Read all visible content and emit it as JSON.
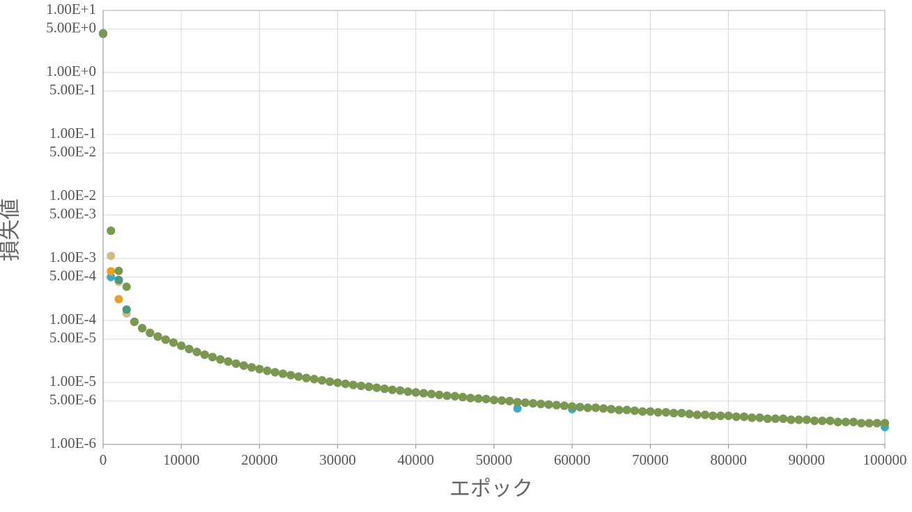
{
  "chart_data": {
    "type": "scatter",
    "x_label": "エポック",
    "y_label": "損失値",
    "log_y": true,
    "grid": true,
    "xlim": [
      0,
      100000
    ],
    "xticks": [
      0,
      10000,
      20000,
      30000,
      40000,
      50000,
      60000,
      70000,
      80000,
      90000,
      100000
    ],
    "ylim": [
      1e-06,
      10
    ],
    "yticks": [
      {
        "value": 10,
        "label": "1.00E+1"
      },
      {
        "value": 5,
        "label": "5.00E+0"
      },
      {
        "value": 1,
        "label": "1.00E+0"
      },
      {
        "value": 0.5,
        "label": "5.00E-1"
      },
      {
        "value": 0.1,
        "label": "1.00E-1"
      },
      {
        "value": 0.05,
        "label": "5.00E-2"
      },
      {
        "value": 0.01,
        "label": "1.00E-2"
      },
      {
        "value": 0.005,
        "label": "5.00E-3"
      },
      {
        "value": 0.001,
        "label": "1.00E-3"
      },
      {
        "value": 0.0005,
        "label": "5.00E-4"
      },
      {
        "value": 0.0001,
        "label": "1.00E-4"
      },
      {
        "value": 5e-05,
        "label": "5.00E-5"
      },
      {
        "value": 1e-05,
        "label": "1.00E-5"
      },
      {
        "value": 5e-06,
        "label": "5.00E-6"
      },
      {
        "value": 1e-06,
        "label": "1.00E-6"
      }
    ],
    "x": [
      0,
      1000,
      2000,
      3000,
      4000,
      5000,
      6000,
      7000,
      8000,
      9000,
      10000,
      11000,
      12000,
      13000,
      14000,
      15000,
      16000,
      17000,
      18000,
      19000,
      20000,
      21000,
      22000,
      23000,
      24000,
      25000,
      26000,
      27000,
      28000,
      29000,
      30000,
      31000,
      32000,
      33000,
      34000,
      35000,
      36000,
      37000,
      38000,
      39000,
      40000,
      41000,
      42000,
      43000,
      44000,
      45000,
      46000,
      47000,
      48000,
      49000,
      50000,
      51000,
      52000,
      53000,
      54000,
      55000,
      56000,
      57000,
      58000,
      59000,
      60000,
      61000,
      62000,
      63000,
      64000,
      65000,
      66000,
      67000,
      68000,
      69000,
      70000,
      71000,
      72000,
      73000,
      74000,
      75000,
      76000,
      77000,
      78000,
      79000,
      80000,
      81000,
      82000,
      83000,
      84000,
      85000,
      86000,
      87000,
      88000,
      89000,
      90000,
      91000,
      92000,
      93000,
      94000,
      95000,
      96000,
      97000,
      98000,
      99000,
      100000
    ],
    "series": [
      {
        "color": "#3fa9c9",
        "values": [
          4.2,
          0.0005,
          0.00045,
          0.00015,
          9.5e-05,
          7.5e-05,
          6.3e-05,
          5.5e-05,
          4.9e-05,
          4.4e-05,
          3.9e-05,
          3.46e-05,
          3.1e-05,
          2.8e-05,
          2.56e-05,
          2.35e-05,
          2.17e-05,
          2.01e-05,
          1.87e-05,
          1.75e-05,
          1.64e-05,
          1.54e-05,
          1.46e-05,
          1.38e-05,
          1.31e-05,
          1.24e-05,
          1.18e-05,
          1.13e-05,
          1.08e-05,
          1.03e-05,
          9.9e-06,
          9.5e-06,
          9.1e-06,
          8.8e-06,
          8.5e-06,
          8.2e-06,
          7.9e-06,
          7.6e-06,
          7.4e-06,
          7.1e-06,
          6.9e-06,
          6.7e-06,
          6.5e-06,
          6.3e-06,
          6.1e-06,
          6e-06,
          5.8e-06,
          5.6e-06,
          5.5e-06,
          5.4e-06,
          5.2e-06,
          5.1e-06,
          5e-06,
          3.8e-06,
          4.7e-06,
          4.6e-06,
          4.5e-06,
          4.4e-06,
          4.3e-06,
          4.2e-06,
          3.7e-06,
          4e-06,
          3.9e-06,
          3.9e-06,
          3.8e-06,
          3.7e-06,
          3.6e-06,
          3.6e-06,
          3.5e-06,
          3.4e-06,
          3.4e-06,
          3.3e-06,
          3.3e-06,
          3.2e-06,
          3.2e-06,
          3.1e-06,
          3e-06,
          3e-06,
          2.9e-06,
          2.9e-06,
          2.9e-06,
          2.8e-06,
          2.8e-06,
          2.7e-06,
          2.7e-06,
          2.6e-06,
          2.6e-06,
          2.6e-06,
          2.5e-06,
          2.5e-06,
          2.5e-06,
          2.4e-06,
          2.4e-06,
          2.4e-06,
          2.3e-06,
          2.3e-06,
          2.3e-06,
          2.2e-06,
          2.2e-06,
          2.2e-06,
          1.9e-06
        ]
      },
      {
        "color": "#e8a326",
        "values": [
          4.2,
          0.00062,
          0.00022,
          0.00013,
          9.5e-05,
          7.5e-05,
          6.3e-05,
          5.5e-05,
          4.9e-05,
          4.4e-05,
          3.9e-05,
          3.46e-05,
          3.1e-05,
          2.8e-05,
          2.56e-05,
          2.35e-05,
          2.17e-05,
          2.01e-05,
          1.87e-05,
          1.75e-05,
          1.64e-05,
          1.54e-05,
          1.46e-05,
          1.38e-05,
          1.31e-05,
          1.24e-05,
          1.18e-05,
          1.13e-05,
          1.08e-05,
          1.03e-05,
          9.9e-06,
          9.5e-06,
          9.1e-06,
          8.8e-06,
          8.5e-06,
          8.2e-06,
          7.9e-06,
          7.6e-06,
          7.4e-06,
          7.1e-06,
          6.9e-06,
          6.7e-06,
          6.5e-06,
          6.3e-06,
          6.1e-06,
          6e-06,
          5.8e-06,
          5.6e-06,
          5.5e-06,
          5.4e-06,
          5.2e-06,
          5.1e-06,
          5e-06,
          4.8e-06,
          4.7e-06,
          4.6e-06,
          4.5e-06,
          4.4e-06,
          4.3e-06,
          4.2e-06,
          4.1e-06,
          4e-06,
          3.9e-06,
          3.9e-06,
          3.8e-06,
          3.7e-06,
          3.6e-06,
          3.6e-06,
          3.5e-06,
          3.4e-06,
          3.4e-06,
          3.3e-06,
          3.3e-06,
          3.2e-06,
          3.2e-06,
          3.1e-06,
          3e-06,
          3e-06,
          2.9e-06,
          2.9e-06,
          2.9e-06,
          2.8e-06,
          2.8e-06,
          2.7e-06,
          2.7e-06,
          2.6e-06,
          2.6e-06,
          2.6e-06,
          2.5e-06,
          2.5e-06,
          2.5e-06,
          2.4e-06,
          2.4e-06,
          2.4e-06,
          2.3e-06,
          2.3e-06,
          2.3e-06,
          2.2e-06,
          2.2e-06,
          2.2e-06,
          2.2e-06
        ]
      },
      {
        "color": "#cdbb8e",
        "values": [
          4.2,
          0.0011,
          0.00042,
          0.00013,
          9.5e-05,
          7.5e-05,
          6.3e-05,
          5.5e-05,
          4.9e-05,
          4.4e-05,
          3.9e-05,
          3.46e-05,
          3.1e-05,
          2.8e-05,
          2.56e-05,
          2.35e-05,
          2.17e-05,
          2.01e-05,
          1.87e-05,
          1.75e-05,
          1.64e-05,
          1.54e-05,
          1.46e-05,
          1.38e-05,
          1.31e-05,
          1.24e-05,
          1.18e-05,
          1.13e-05,
          1.08e-05,
          1.03e-05,
          9.9e-06,
          9.5e-06,
          9.1e-06,
          8.8e-06,
          8.5e-06,
          8.2e-06,
          7.9e-06,
          7.6e-06,
          7.4e-06,
          7.1e-06,
          6.9e-06,
          6.7e-06,
          6.5e-06,
          6.3e-06,
          6.1e-06,
          6e-06,
          5.8e-06,
          5.6e-06,
          5.5e-06,
          5.4e-06,
          5.2e-06,
          5.1e-06,
          5e-06,
          4.8e-06,
          4.7e-06,
          4.6e-06,
          4.5e-06,
          4.4e-06,
          4.3e-06,
          4.2e-06,
          4.1e-06,
          4e-06,
          3.9e-06,
          3.9e-06,
          3.8e-06,
          3.7e-06,
          3.6e-06,
          3.6e-06,
          3.5e-06,
          3.4e-06,
          3.4e-06,
          3.3e-06,
          3.3e-06,
          3.2e-06,
          3.2e-06,
          3.1e-06,
          3e-06,
          3e-06,
          2.9e-06,
          2.9e-06,
          2.9e-06,
          2.8e-06,
          2.8e-06,
          2.7e-06,
          2.7e-06,
          2.6e-06,
          2.6e-06,
          2.6e-06,
          2.5e-06,
          2.5e-06,
          2.5e-06,
          2.4e-06,
          2.4e-06,
          2.4e-06,
          2.3e-06,
          2.3e-06,
          2.3e-06,
          2.2e-06,
          2.2e-06,
          2.2e-06,
          2.2e-06
        ]
      },
      {
        "color": "#4a9a7a",
        "values": [
          4.2,
          0.0028,
          0.00045,
          0.00015,
          9.5e-05,
          7.5e-05,
          6.3e-05,
          5.5e-05,
          4.9e-05,
          4.4e-05,
          3.9e-05,
          3.46e-05,
          3.1e-05,
          2.8e-05,
          2.56e-05,
          2.35e-05,
          2.17e-05,
          2.01e-05,
          1.87e-05,
          1.75e-05,
          1.64e-05,
          1.54e-05,
          1.46e-05,
          1.38e-05,
          1.31e-05,
          1.24e-05,
          1.18e-05,
          1.13e-05,
          1.08e-05,
          1.03e-05,
          9.9e-06,
          9.5e-06,
          9.1e-06,
          8.8e-06,
          8.5e-06,
          8.2e-06,
          7.9e-06,
          7.6e-06,
          7.4e-06,
          7.1e-06,
          6.9e-06,
          6.7e-06,
          6.5e-06,
          6.3e-06,
          6.1e-06,
          6e-06,
          5.8e-06,
          5.6e-06,
          5.5e-06,
          5.4e-06,
          5.2e-06,
          5.1e-06,
          5e-06,
          4.8e-06,
          4.7e-06,
          4.6e-06,
          4.5e-06,
          4.4e-06,
          4.3e-06,
          4.2e-06,
          4.1e-06,
          4e-06,
          3.9e-06,
          3.9e-06,
          3.8e-06,
          3.7e-06,
          3.6e-06,
          3.6e-06,
          3.5e-06,
          3.4e-06,
          3.4e-06,
          3.3e-06,
          3.3e-06,
          3.2e-06,
          3.2e-06,
          3.1e-06,
          3e-06,
          3e-06,
          2.9e-06,
          2.9e-06,
          2.9e-06,
          2.8e-06,
          2.8e-06,
          2.7e-06,
          2.7e-06,
          2.6e-06,
          2.6e-06,
          2.6e-06,
          2.5e-06,
          2.5e-06,
          2.5e-06,
          2.4e-06,
          2.4e-06,
          2.4e-06,
          2.3e-06,
          2.3e-06,
          2.3e-06,
          2.2e-06,
          2.2e-06,
          2.2e-06,
          2.2e-06
        ]
      },
      {
        "color": "#7a9850",
        "values": [
          4.3,
          0.0028,
          0.00063,
          0.00035,
          9.5e-05,
          7.5e-05,
          6.3e-05,
          5.5e-05,
          4.9e-05,
          4.4e-05,
          3.9e-05,
          3.46e-05,
          3.1e-05,
          2.8e-05,
          2.56e-05,
          2.35e-05,
          2.17e-05,
          2.01e-05,
          1.87e-05,
          1.75e-05,
          1.64e-05,
          1.54e-05,
          1.46e-05,
          1.38e-05,
          1.31e-05,
          1.24e-05,
          1.18e-05,
          1.13e-05,
          1.08e-05,
          1.03e-05,
          9.9e-06,
          9.5e-06,
          9.1e-06,
          8.8e-06,
          8.5e-06,
          8.2e-06,
          7.9e-06,
          7.6e-06,
          7.4e-06,
          7.1e-06,
          6.9e-06,
          6.7e-06,
          6.5e-06,
          6.3e-06,
          6.1e-06,
          6e-06,
          5.8e-06,
          5.6e-06,
          5.5e-06,
          5.4e-06,
          5.2e-06,
          5.1e-06,
          5e-06,
          4.8e-06,
          4.7e-06,
          4.6e-06,
          4.5e-06,
          4.4e-06,
          4.3e-06,
          4.2e-06,
          4.1e-06,
          4e-06,
          3.9e-06,
          3.9e-06,
          3.8e-06,
          3.7e-06,
          3.6e-06,
          3.6e-06,
          3.5e-06,
          3.4e-06,
          3.4e-06,
          3.3e-06,
          3.3e-06,
          3.2e-06,
          3.2e-06,
          3.1e-06,
          3e-06,
          3e-06,
          2.9e-06,
          2.9e-06,
          2.9e-06,
          2.8e-06,
          2.8e-06,
          2.7e-06,
          2.7e-06,
          2.6e-06,
          2.6e-06,
          2.6e-06,
          2.5e-06,
          2.5e-06,
          2.5e-06,
          2.4e-06,
          2.4e-06,
          2.4e-06,
          2.3e-06,
          2.3e-06,
          2.3e-06,
          2.2e-06,
          2.2e-06,
          2.2e-06,
          2.2e-06
        ]
      }
    ]
  }
}
